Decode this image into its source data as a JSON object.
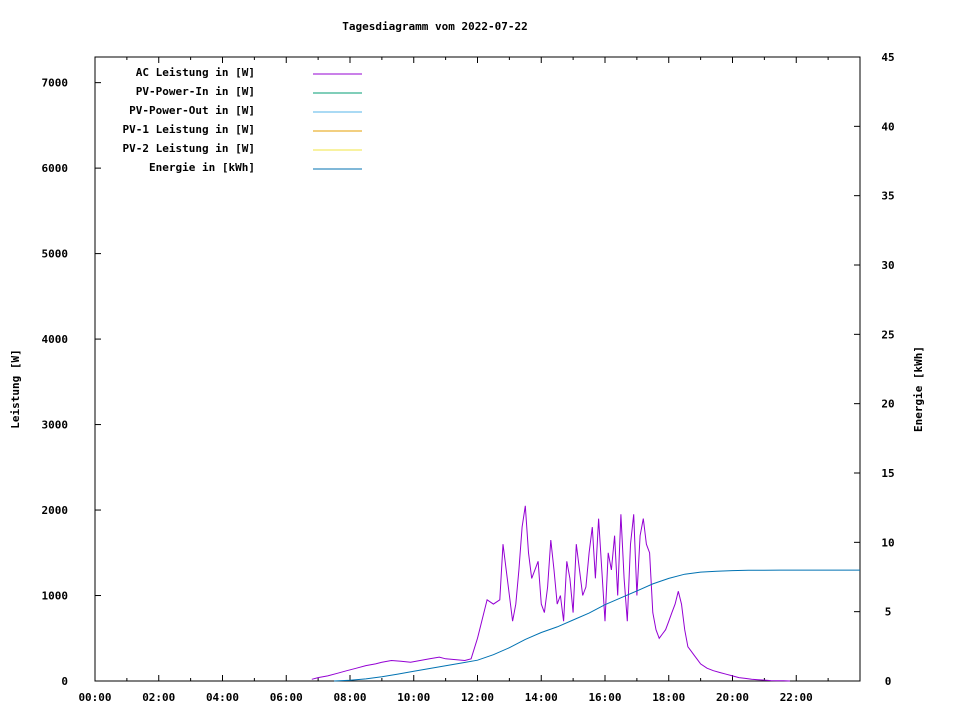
{
  "chart_data": {
    "type": "line",
    "title": "Tagesdiagramm vom 2022-07-22",
    "ylabel": "Leistung [W]",
    "y2label": "Energie [kWh]",
    "xlabel": "",
    "xlim": [
      0,
      24
    ],
    "ylim": [
      0,
      7300
    ],
    "y2lim": [
      0,
      45
    ],
    "x_ticks": [
      "00:00",
      "02:00",
      "04:00",
      "06:00",
      "08:00",
      "10:00",
      "12:00",
      "14:00",
      "16:00",
      "18:00",
      "20:00",
      "22:00"
    ],
    "y_ticks": [
      "0",
      "1000",
      "2000",
      "3000",
      "4000",
      "5000",
      "6000",
      "7000"
    ],
    "y2_ticks": [
      "0",
      "5",
      "10",
      "15",
      "20",
      "25",
      "30",
      "35",
      "40",
      "45"
    ],
    "legend_position": "top-left",
    "legend": [
      {
        "label": "AC Leistung in [W]",
        "color": "#9400d3"
      },
      {
        "label": "PV-Power-In in [W]",
        "color": "#009e73"
      },
      {
        "label": "PV-Power-Out in [W]",
        "color": "#56b4e9"
      },
      {
        "label": "PV-1 Leistung in [W]",
        "color": "#e69f00"
      },
      {
        "label": "PV-2 Leistung in [W]",
        "color": "#f0e442"
      },
      {
        "label": "Energie in [kWh]",
        "color": "#0072b2"
      }
    ],
    "series": [
      {
        "name": "AC Leistung in [W]",
        "axis": "left",
        "color": "#9400d3",
        "x": [
          6.8,
          7.0,
          7.3,
          7.6,
          7.9,
          8.2,
          8.5,
          8.8,
          9.0,
          9.3,
          9.6,
          9.9,
          10.2,
          10.5,
          10.8,
          11.0,
          11.3,
          11.6,
          11.8,
          12.0,
          12.2,
          12.3,
          12.5,
          12.7,
          12.8,
          12.9,
          13.0,
          13.1,
          13.2,
          13.3,
          13.4,
          13.5,
          13.6,
          13.7,
          13.8,
          13.9,
          14.0,
          14.1,
          14.2,
          14.3,
          14.4,
          14.5,
          14.6,
          14.7,
          14.8,
          14.9,
          15.0,
          15.1,
          15.2,
          15.3,
          15.4,
          15.5,
          15.6,
          15.7,
          15.8,
          15.9,
          16.0,
          16.1,
          16.2,
          16.3,
          16.4,
          16.5,
          16.6,
          16.7,
          16.8,
          16.9,
          17.0,
          17.1,
          17.2,
          17.3,
          17.4,
          17.5,
          17.6,
          17.7,
          17.8,
          17.9,
          18.0,
          18.1,
          18.2,
          18.3,
          18.4,
          18.5,
          18.6,
          18.7,
          18.8,
          18.9,
          19.0,
          19.2,
          19.4,
          19.6,
          19.8,
          20.0,
          20.2,
          20.4,
          20.6,
          20.8,
          21.0,
          21.2,
          21.4,
          21.6,
          21.8
        ],
        "y": [
          20,
          40,
          60,
          90,
          120,
          150,
          180,
          200,
          220,
          240,
          230,
          220,
          240,
          260,
          280,
          260,
          250,
          240,
          260,
          500,
          800,
          950,
          900,
          950,
          1600,
          1300,
          1000,
          700,
          900,
          1300,
          1800,
          2050,
          1500,
          1200,
          1300,
          1400,
          900,
          800,
          1100,
          1650,
          1300,
          900,
          1000,
          700,
          1400,
          1200,
          800,
          1600,
          1300,
          1000,
          1100,
          1500,
          1800,
          1200,
          1900,
          1300,
          700,
          1500,
          1300,
          1700,
          1000,
          1950,
          1200,
          700,
          1600,
          1950,
          1000,
          1700,
          1900,
          1600,
          1500,
          800,
          600,
          500,
          550,
          600,
          700,
          800,
          900,
          1050,
          900,
          600,
          400,
          350,
          300,
          250,
          200,
          150,
          120,
          100,
          80,
          60,
          40,
          30,
          20,
          15,
          10,
          5,
          3,
          2,
          0
        ]
      },
      {
        "name": "Energie in [kWh]",
        "axis": "right",
        "color": "#0072b2",
        "x": [
          7.5,
          8.0,
          8.5,
          9.0,
          9.5,
          10.0,
          10.5,
          11.0,
          11.5,
          12.0,
          12.5,
          13.0,
          13.5,
          14.0,
          14.5,
          15.0,
          15.5,
          16.0,
          16.5,
          17.0,
          17.5,
          18.0,
          18.5,
          19.0,
          19.5,
          20.0,
          20.5,
          21.0,
          21.5,
          22.0,
          23.0,
          24.0
        ],
        "y": [
          0.0,
          0.05,
          0.15,
          0.3,
          0.5,
          0.7,
          0.9,
          1.1,
          1.3,
          1.5,
          1.9,
          2.4,
          3.0,
          3.5,
          3.9,
          4.4,
          4.9,
          5.5,
          6.0,
          6.5,
          7.0,
          7.4,
          7.7,
          7.85,
          7.92,
          7.96,
          7.98,
          7.99,
          8.0,
          8.0,
          8.0,
          8.0
        ]
      }
    ]
  }
}
